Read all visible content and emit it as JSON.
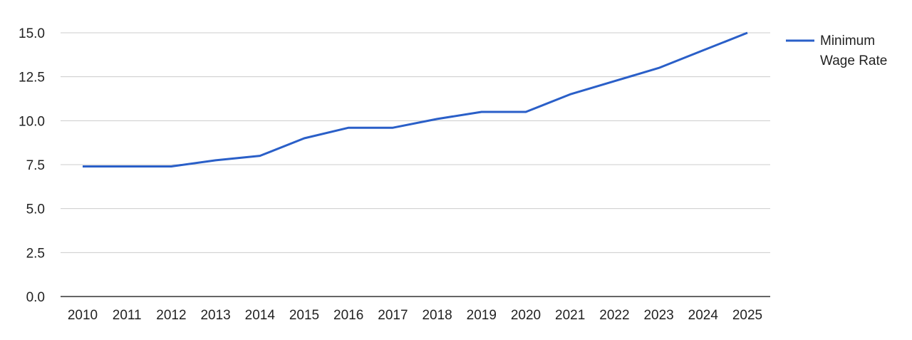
{
  "chart_data": {
    "type": "line",
    "x": [
      "2010",
      "2011",
      "2012",
      "2013",
      "2014",
      "2015",
      "2016",
      "2017",
      "2018",
      "2019",
      "2020",
      "2021",
      "2022",
      "2023",
      "2024",
      "2025"
    ],
    "series": [
      {
        "name": "Minimum Wage Rate",
        "values": [
          7.4,
          7.4,
          7.4,
          7.75,
          8.0,
          9.0,
          9.6,
          9.6,
          10.1,
          10.5,
          10.5,
          11.5,
          12.25,
          13.0,
          14.0,
          15.0
        ],
        "color": "#2a5fc8"
      }
    ],
    "yticks": [
      "0.0",
      "2.5",
      "5.0",
      "7.5",
      "10.0",
      "12.5",
      "15.0"
    ],
    "ylim": [
      0,
      15
    ],
    "grid": true,
    "legend_position": "right",
    "legend_lines": [
      "Minimum",
      "Wage Rate"
    ]
  }
}
